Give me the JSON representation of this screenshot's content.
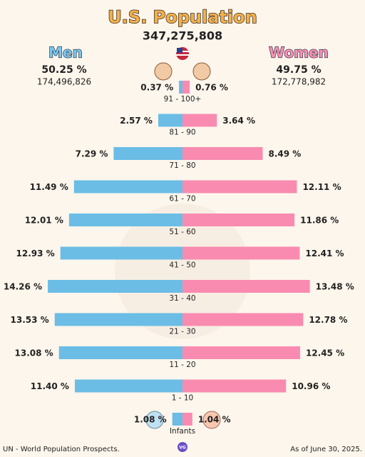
{
  "chart_data": {
    "type": "bar",
    "orientation": "pyramid",
    "title": "U.S. Population",
    "subtitle": "347,275,808",
    "categories": [
      "91 - 100+",
      "81 - 90",
      "71 - 80",
      "61 - 70",
      "51 - 60",
      "41 - 50",
      "31 - 40",
      "21 - 30",
      "11 - 20",
      "1 - 10",
      "Infants"
    ],
    "series": [
      {
        "name": "Men",
        "color": "#6bbde6",
        "share": "50.25 %",
        "population": "174,496,826",
        "values": [
          0.37,
          2.57,
          7.29,
          11.49,
          12.01,
          12.93,
          14.26,
          13.53,
          13.08,
          11.4,
          1.08
        ],
        "value_labels": [
          "0.37 %",
          "2.57 %",
          "7.29 %",
          "11.49 %",
          "12.01 %",
          "12.93 %",
          "14.26 %",
          "13.53 %",
          "13.08 %",
          "11.40 %",
          "1.08 %"
        ]
      },
      {
        "name": "Women",
        "color": "#f98bb0",
        "share": "49.75 %",
        "population": "172,778,982",
        "values": [
          0.76,
          3.64,
          8.49,
          12.11,
          11.86,
          12.41,
          13.48,
          12.78,
          12.45,
          10.96,
          1.04
        ],
        "value_labels": [
          "0.76 %",
          "3.64 %",
          "8.49 %",
          "12.11 %",
          "11.86 %",
          "12.41 %",
          "13.48 %",
          "12.78 %",
          "12.45 %",
          "10.96 %",
          "1.04 %"
        ]
      }
    ],
    "source": "UN - World Population Prospects.",
    "date": "As of June 30, 2025.",
    "logo": "VG"
  }
}
